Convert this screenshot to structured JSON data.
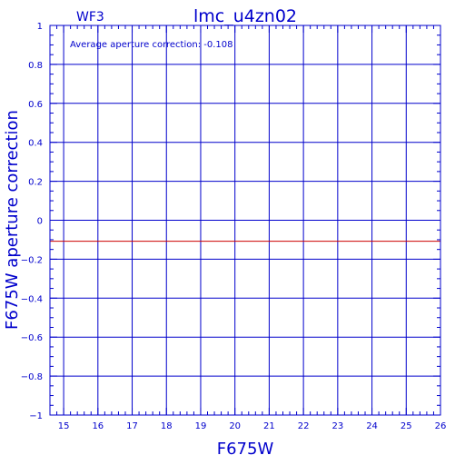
{
  "header": {
    "left_label": "WF3",
    "title": "lmc_u4zn02"
  },
  "annotation": "Average aperture correction: -0.108",
  "chart_data": {
    "type": "line",
    "title": "lmc_u4zn02",
    "subtitle": "WF3",
    "xlabel": "F675W",
    "ylabel": "F675W aperture correction",
    "xlim": [
      14.6,
      26
    ],
    "ylim": [
      -1,
      1
    ],
    "xticks": [
      "15",
      "16",
      "17",
      "18",
      "19",
      "20",
      "21",
      "22",
      "23",
      "24",
      "25",
      "26"
    ],
    "yticks": [
      "-1",
      "-0.8",
      "-0.6",
      "-0.4",
      "-0.2",
      "0",
      "0.2",
      "0.4",
      "0.6",
      "0.8",
      "1"
    ],
    "grid": true,
    "series": [
      {
        "x": [
          14.6,
          26
        ],
        "y": [
          -0.108,
          -0.108
        ]
      }
    ],
    "colors": {
      "axes": "#0000cc",
      "series": "#cc0000"
    }
  }
}
